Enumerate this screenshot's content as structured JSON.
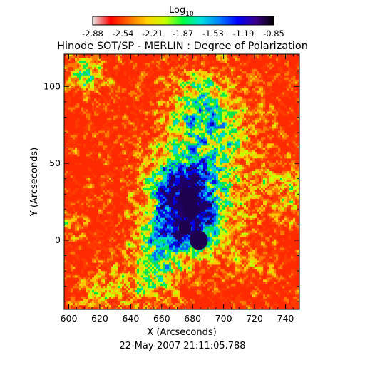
{
  "chart_data": {
    "type": "heatmap",
    "title": "Hinode SOT/SP - MERLIN : Degree of Polarization",
    "xlabel": "X (Arcseconds)",
    "ylabel": "Y (Arcseconds)",
    "xlim": [
      597,
      749
    ],
    "ylim": [
      -45,
      121
    ],
    "x_ticks": [
      600,
      620,
      640,
      660,
      680,
      700,
      720,
      740
    ],
    "y_ticks": [
      0,
      50,
      100
    ],
    "timestamp": "22-May-2007 21:11:05.788",
    "colorbar": {
      "label_base": "Log",
      "label_sub": "10",
      "min": -2.88,
      "max": -0.85,
      "tick_labels": [
        "-2.88",
        "-2.54",
        "-2.21",
        "-1.87",
        "-1.53",
        "-1.19",
        "-0.85"
      ],
      "colors": [
        "#e6e6e6",
        "#ff0000",
        "#ff6a00",
        "#ffd200",
        "#c8ff00",
        "#00ff40",
        "#00e0e0",
        "#0080ff",
        "#0000ff",
        "#3c008c",
        "#000000"
      ]
    }
  }
}
